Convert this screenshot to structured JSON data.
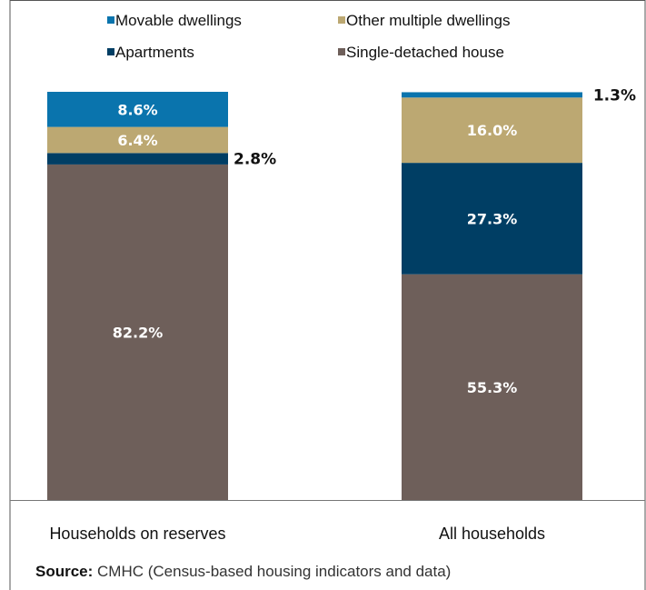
{
  "chart_data": {
    "type": "bar",
    "stacked": true,
    "ylim": [
      0,
      100
    ],
    "categories": [
      "Households on reserves",
      "All households"
    ],
    "series": [
      {
        "name": "Single-detached house",
        "color": "#6e5f5a",
        "values": [
          82.2,
          55.3
        ]
      },
      {
        "name": "Apartments",
        "color": "#003e64",
        "values": [
          2.8,
          27.3
        ]
      },
      {
        "name": "Other multiple dwellings",
        "color": "#bca872",
        "values": [
          6.4,
          16.0
        ]
      },
      {
        "name": "Movable dwellings",
        "color": "#0a74ad",
        "values": [
          8.6,
          1.3
        ]
      }
    ],
    "data_labels": [
      [
        "82.2%",
        "55.3%"
      ],
      [
        "2.8%",
        "27.3%"
      ],
      [
        "6.4%",
        "16.0%"
      ],
      [
        "8.6%",
        "1.3%"
      ]
    ],
    "legend": {
      "placement": "top",
      "order": [
        "Movable dwellings",
        "Other multiple dwellings",
        "Apartments",
        "Single-detached house"
      ]
    }
  },
  "source": {
    "label": "Source:",
    "text": "CMHC (Census-based housing indicators and data)"
  }
}
